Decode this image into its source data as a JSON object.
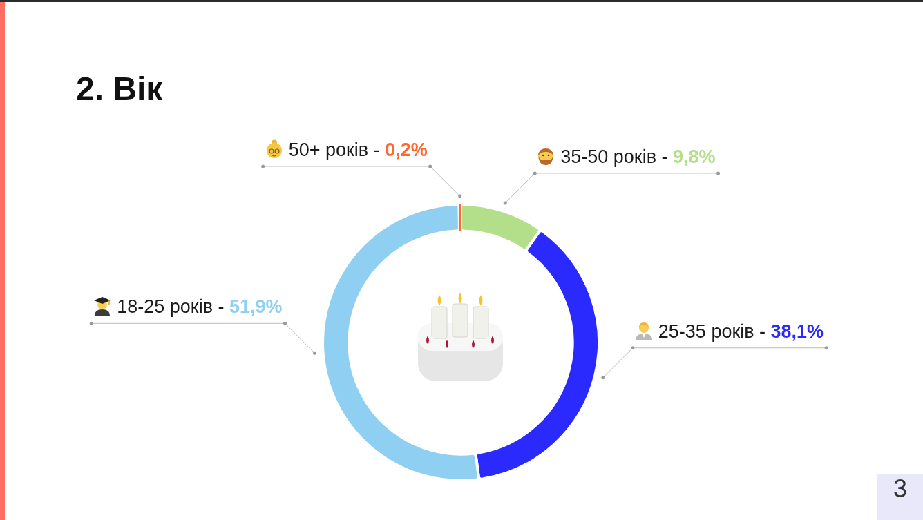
{
  "chart_data": {
    "type": "donut",
    "title": "2. Вік",
    "categories": [
      "35-50 років -",
      "25-35 років -",
      "18-25 років -",
      "50+ років -"
    ],
    "values": [
      9.8,
      38.1,
      51.9,
      0.2
    ],
    "colors": [
      "#b3df8a",
      "#2a2aff",
      "#8fd0f2",
      "#fc6a32"
    ],
    "value_labels": [
      "9,8%",
      "38,1%",
      "51,9%",
      "0,2%"
    ],
    "annotations": [
      "3"
    ]
  }
}
